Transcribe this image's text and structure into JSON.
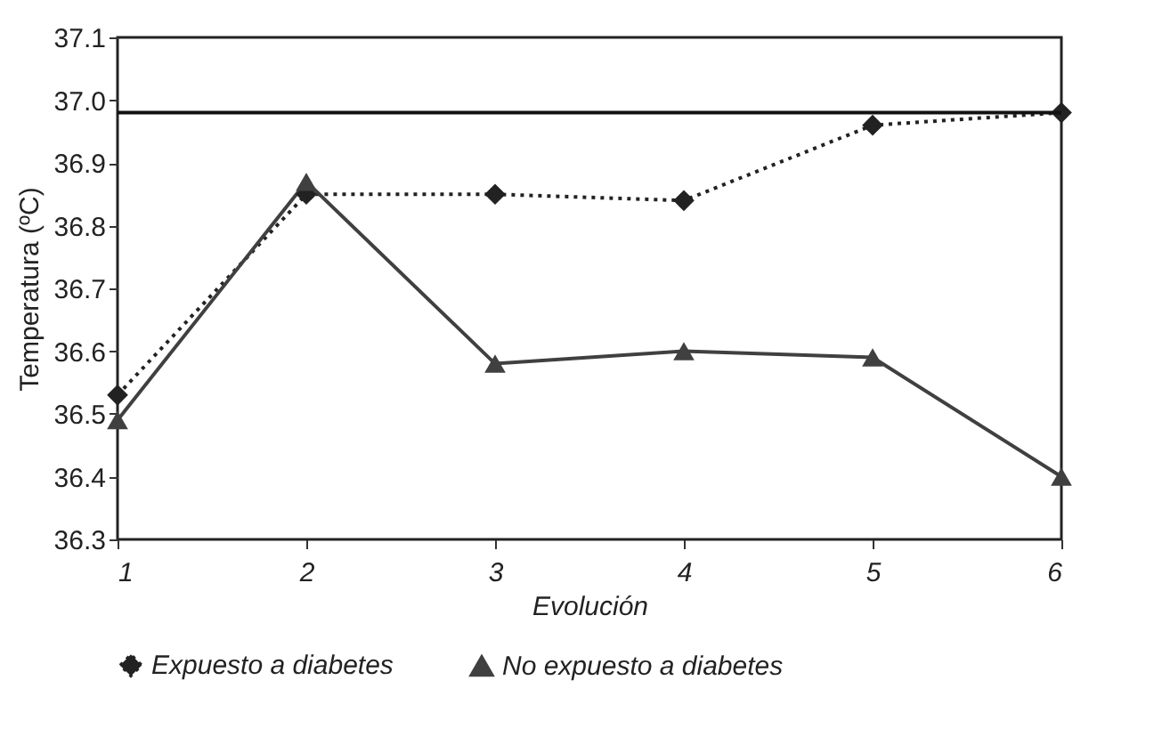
{
  "chart_data": {
    "type": "line",
    "xlabel": "Evolución",
    "ylabel": "Temperatura (ºC)",
    "x": [
      1,
      2,
      3,
      4,
      5,
      6
    ],
    "xlim": [
      1,
      6
    ],
    "xticks": [
      1,
      2,
      3,
      4,
      5,
      6
    ],
    "ylim": [
      36.3,
      37.1
    ],
    "yticks": [
      36.3,
      36.4,
      36.5,
      36.6,
      36.7,
      36.8,
      36.9,
      {
        "value": 37,
        "label": "37.0"
      },
      37.1
    ],
    "series": [
      {
        "name": "Expuesto a diabetes",
        "color": "#222222",
        "marker": "diamond",
        "line_style": "dotted",
        "values": [
          36.53,
          36.85,
          36.85,
          36.84,
          36.96,
          36.98
        ]
      },
      {
        "name": "No expuesto a diabetes",
        "color": "#404040",
        "marker": "triangle",
        "line_style": "solid",
        "values": [
          36.49,
          36.87,
          36.58,
          36.6,
          36.59,
          36.4
        ]
      }
    ],
    "ref_lines": [
      {
        "axis": "y",
        "value": 36.98,
        "color": "#111111"
      }
    ],
    "grid": false,
    "legend": "bottom"
  }
}
